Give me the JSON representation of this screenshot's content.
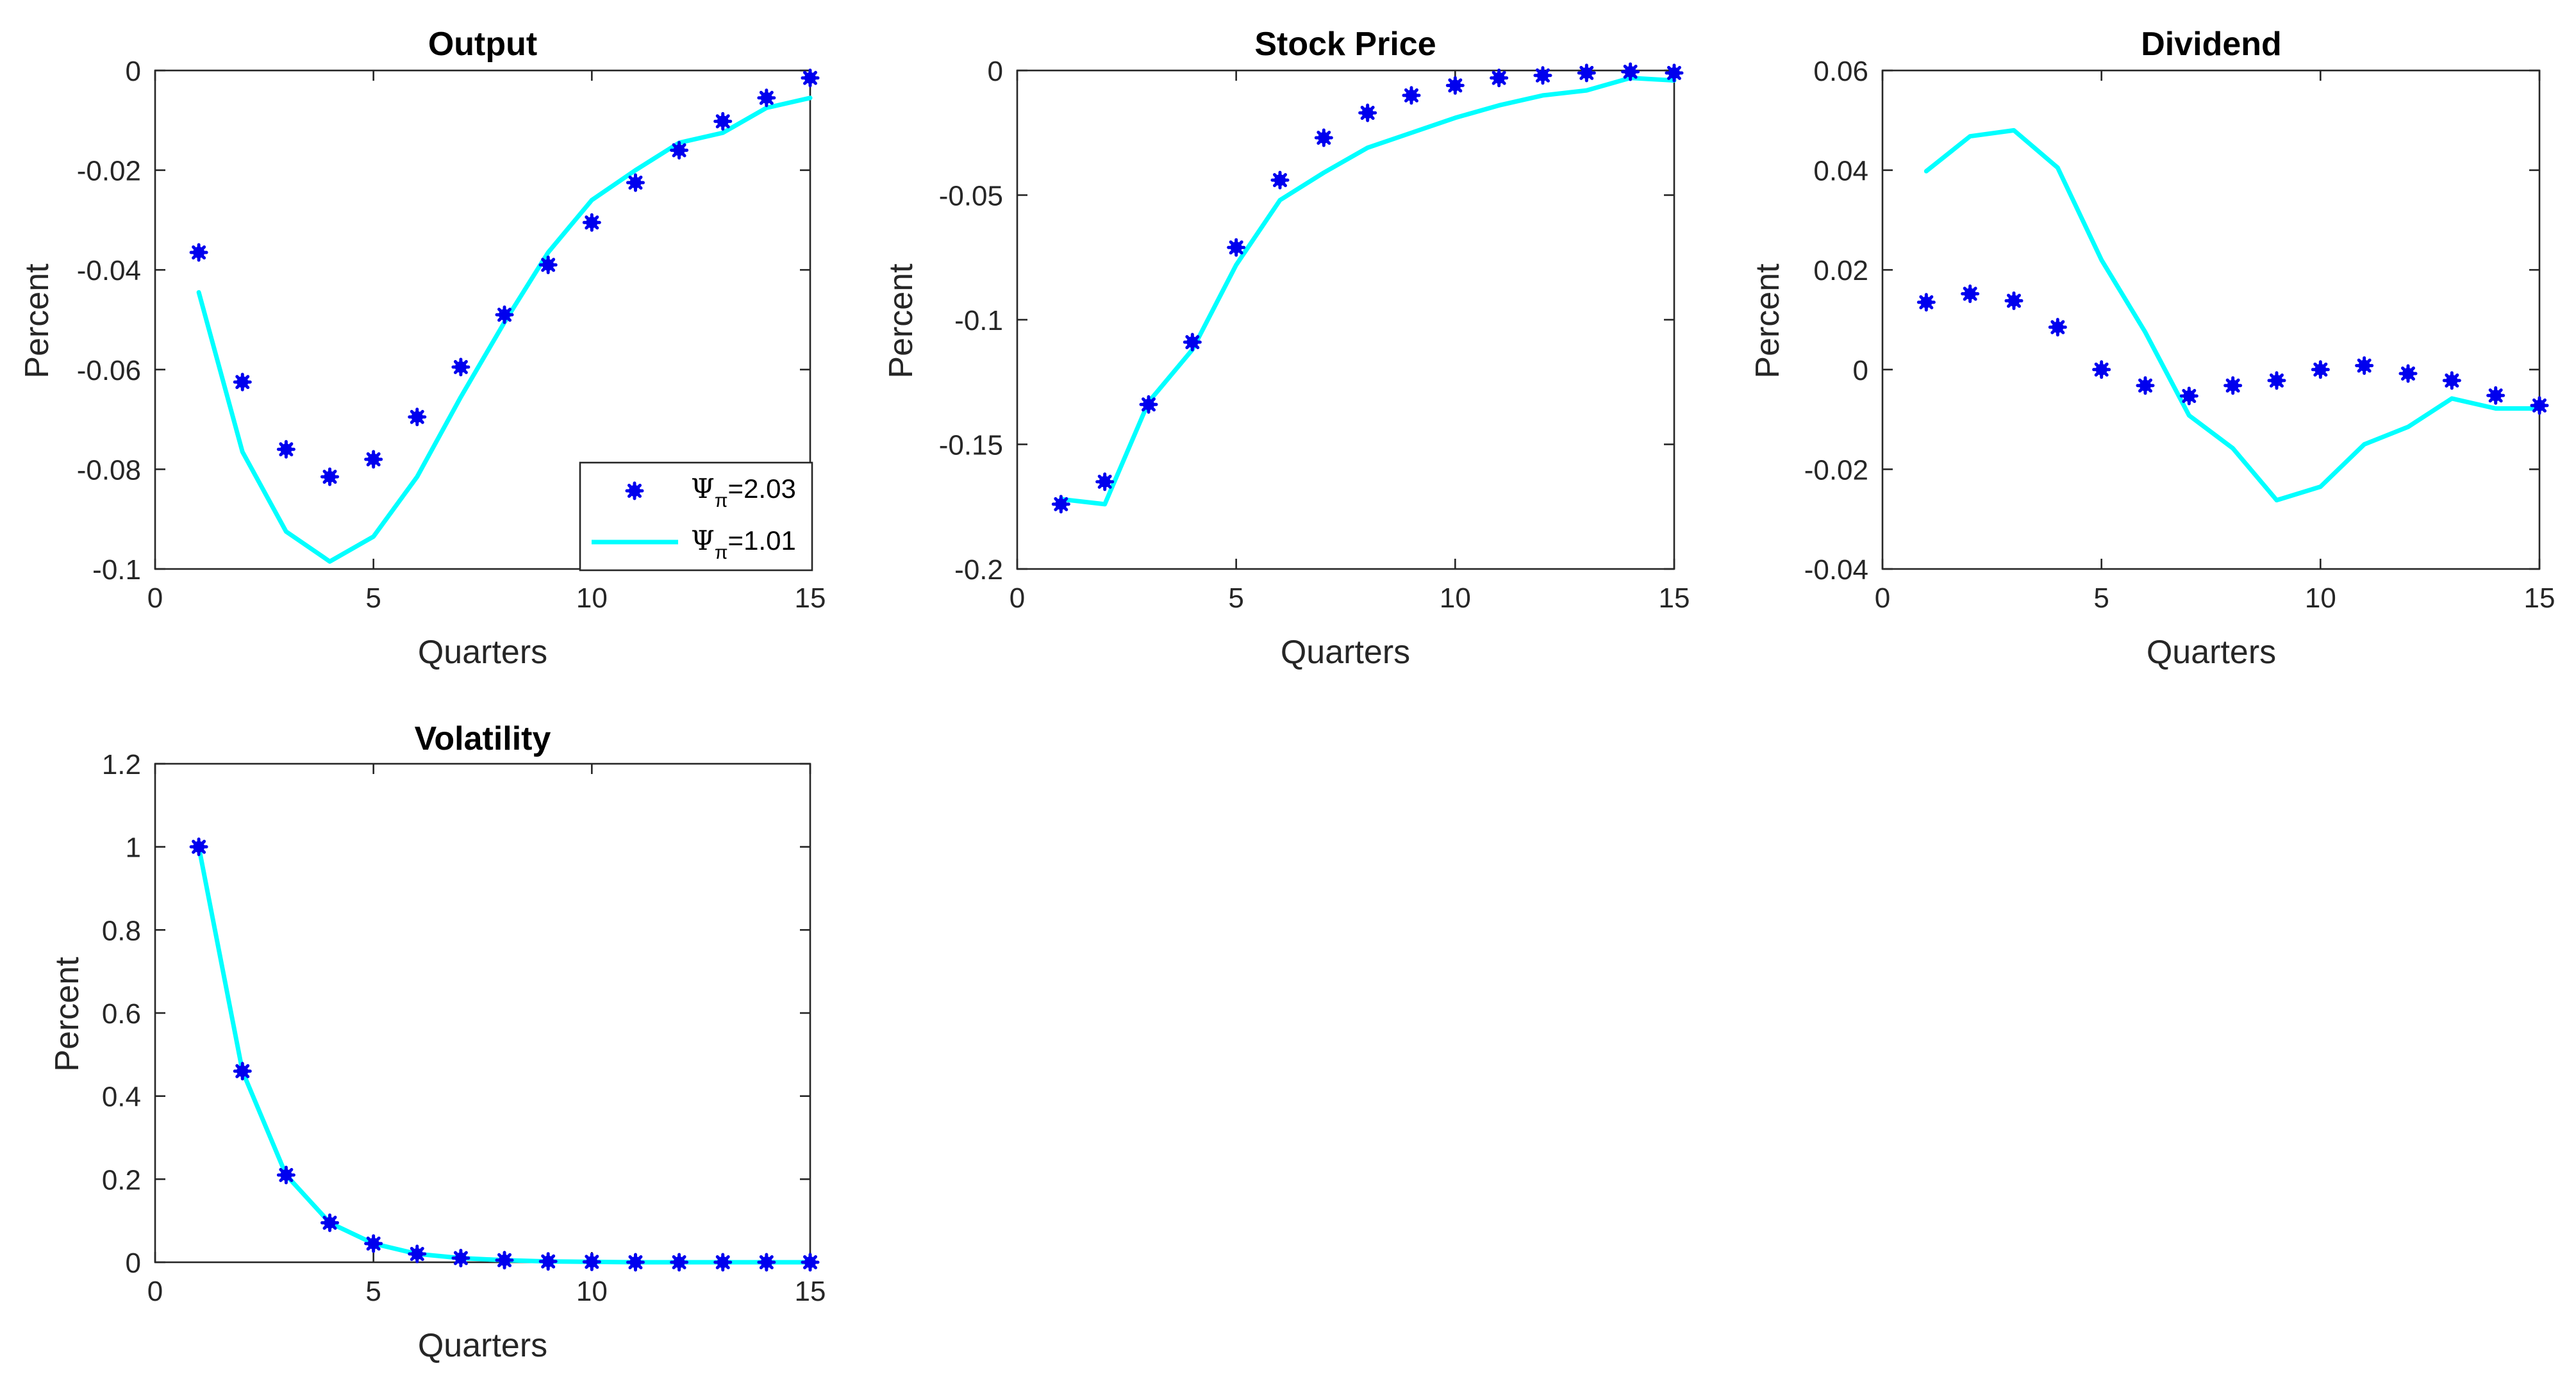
{
  "chart_data": [
    {
      "type": "line",
      "title": "Output",
      "xlabel": "Quarters",
      "ylabel": "Percent",
      "xlim": [
        0,
        15
      ],
      "ylim": [
        -0.1,
        0
      ],
      "xticks": [
        0,
        5,
        10,
        15
      ],
      "xtick_labels": [
        "0",
        "5",
        "10",
        "15"
      ],
      "yticks": [
        -0.1,
        -0.08,
        -0.06,
        -0.04,
        -0.02,
        0
      ],
      "ytick_labels": [
        "-0.1",
        "-0.08",
        "-0.06",
        "-0.04",
        "-0.02",
        "0"
      ],
      "grid": false,
      "legend_location": "bottom-right",
      "x": [
        1,
        2,
        3,
        4,
        5,
        6,
        7,
        8,
        9,
        10,
        11,
        12,
        13,
        14,
        15
      ],
      "series": [
        {
          "name": "Ψπ=2.03",
          "style": "markers",
          "values": [
            -0.0365,
            -0.0625,
            -0.076,
            -0.0815,
            -0.078,
            -0.0695,
            -0.0595,
            -0.049,
            -0.039,
            -0.0305,
            -0.0225,
            -0.016,
            -0.0102,
            -0.0055,
            -0.0015
          ]
        },
        {
          "name": "Ψπ=1.01",
          "style": "line",
          "values": [
            -0.0445,
            -0.0765,
            -0.0925,
            -0.0985,
            -0.0935,
            -0.0815,
            -0.0655,
            -0.0505,
            -0.0365,
            -0.026,
            -0.02,
            -0.0145,
            -0.0125,
            -0.0075,
            -0.0055
          ]
        }
      ]
    },
    {
      "type": "line",
      "title": "Stock Price",
      "xlabel": "Quarters",
      "ylabel": "Percent",
      "xlim": [
        0,
        15
      ],
      "ylim": [
        -0.2,
        0
      ],
      "xticks": [
        0,
        5,
        10,
        15
      ],
      "xtick_labels": [
        "0",
        "5",
        "10",
        "15"
      ],
      "yticks": [
        -0.2,
        -0.15,
        -0.1,
        -0.05,
        0
      ],
      "ytick_labels": [
        "-0.2",
        "-0.15",
        "-0.1",
        "-0.05",
        "0"
      ],
      "grid": false,
      "x": [
        1,
        2,
        3,
        4,
        5,
        6,
        7,
        8,
        9,
        10,
        11,
        12,
        13,
        14,
        15
      ],
      "series": [
        {
          "name": "Ψπ=2.03",
          "style": "markers",
          "values": [
            -0.174,
            -0.165,
            -0.134,
            -0.109,
            -0.071,
            -0.044,
            -0.027,
            -0.017,
            -0.01,
            -0.006,
            -0.003,
            -0.002,
            -0.001,
            -0.0005,
            -0.001
          ]
        },
        {
          "name": "Ψπ=1.01",
          "style": "line",
          "values": [
            -0.172,
            -0.174,
            -0.133,
            -0.112,
            -0.078,
            -0.052,
            -0.041,
            -0.031,
            -0.025,
            -0.019,
            -0.014,
            -0.01,
            -0.008,
            -0.003,
            -0.004
          ]
        }
      ]
    },
    {
      "type": "line",
      "title": "Dividend",
      "xlabel": "Quarters",
      "ylabel": "Percent",
      "xlim": [
        0,
        15
      ],
      "ylim": [
        -0.04,
        0.06
      ],
      "xticks": [
        0,
        5,
        10,
        15
      ],
      "xtick_labels": [
        "0",
        "5",
        "10",
        "15"
      ],
      "yticks": [
        -0.04,
        -0.02,
        0,
        0.02,
        0.04,
        0.06
      ],
      "ytick_labels": [
        "-0.04",
        "-0.02",
        "0",
        "0.02",
        "0.04",
        "0.06"
      ],
      "grid": false,
      "x": [
        1,
        2,
        3,
        4,
        5,
        6,
        7,
        8,
        9,
        10,
        11,
        12,
        13,
        14,
        15
      ],
      "series": [
        {
          "name": "Ψπ=2.03",
          "style": "markers",
          "values": [
            0.0135,
            0.0152,
            0.0138,
            0.0085,
            0.0,
            -0.0032,
            -0.0053,
            -0.0032,
            -0.0022,
            0.0,
            0.0008,
            -0.0008,
            -0.0022,
            -0.0052,
            -0.0072
          ]
        },
        {
          "name": "Ψπ=1.01",
          "style": "line",
          "values": [
            0.0398,
            0.0468,
            0.048,
            0.0405,
            0.022,
            0.0075,
            -0.0092,
            -0.0158,
            -0.0262,
            -0.0235,
            -0.015,
            -0.0115,
            -0.0058,
            -0.0078,
            -0.0078
          ]
        }
      ]
    },
    {
      "type": "line",
      "title": "Volatility",
      "xlabel": "Quarters",
      "ylabel": "Percent",
      "xlim": [
        0,
        15
      ],
      "ylim": [
        0,
        1.2
      ],
      "xticks": [
        0,
        5,
        10,
        15
      ],
      "xtick_labels": [
        "0",
        "5",
        "10",
        "15"
      ],
      "yticks": [
        0,
        0.2,
        0.4,
        0.6,
        0.8,
        1,
        1.2
      ],
      "ytick_labels": [
        "0",
        "0.2",
        "0.4",
        "0.6",
        "0.8",
        "1",
        "1.2"
      ],
      "grid": false,
      "x": [
        1,
        2,
        3,
        4,
        5,
        6,
        7,
        8,
        9,
        10,
        11,
        12,
        13,
        14,
        15
      ],
      "series": [
        {
          "name": "Ψπ=2.03",
          "style": "markers",
          "values": [
            1.0,
            0.46,
            0.21,
            0.095,
            0.045,
            0.02,
            0.01,
            0.005,
            0.002,
            0.001,
            0.0,
            0.0,
            0.0,
            0.0,
            0.0
          ]
        },
        {
          "name": "Ψπ=1.01",
          "style": "line",
          "values": [
            1.0,
            0.46,
            0.21,
            0.095,
            0.045,
            0.02,
            0.01,
            0.005,
            0.002,
            0.001,
            0.0,
            0.0,
            0.0,
            0.0,
            0.0
          ]
        }
      ]
    }
  ],
  "legend": {
    "entries": [
      {
        "symbol": "Ψ",
        "subscript": "π",
        "value": "=2.03"
      },
      {
        "symbol": "Ψ",
        "subscript": "π",
        "value": "=1.01"
      }
    ]
  },
  "colors": {
    "marker_series": "#0000ee",
    "line_series": "#00ffff",
    "axes": "#262626"
  }
}
